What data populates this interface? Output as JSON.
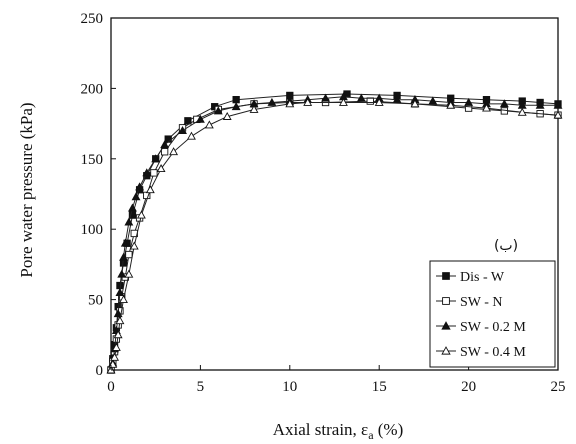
{
  "chart_data": {
    "type": "line",
    "xlabel": "Axial strain, εa (%)",
    "xlabel_main": "Axial strain, ε",
    "xlabel_sub": "a",
    "xlabel_tail": " (%)",
    "ylabel": "Pore water pressure (kPa)",
    "xlim": [
      0,
      25
    ],
    "ylim": [
      0,
      250
    ],
    "xticks": [
      "0",
      "5",
      "10",
      "15",
      "20",
      "25"
    ],
    "yticks": [
      "0",
      "50",
      "100",
      "150",
      "200",
      "250"
    ],
    "grid": false,
    "legend_position": "bottom-right",
    "annotation": "(ب)",
    "series": [
      {
        "name": "Dis - W",
        "marker": "filled-square",
        "x": [
          0,
          0.1,
          0.2,
          0.3,
          0.4,
          0.5,
          0.7,
          0.9,
          1.2,
          1.6,
          2,
          2.5,
          3.2,
          4.3,
          5.8,
          7,
          10,
          13.2,
          16,
          19,
          21,
          23,
          24,
          25
        ],
        "y": [
          0,
          8,
          18,
          30,
          45,
          60,
          76,
          90,
          110,
          128,
          138,
          150,
          164,
          177,
          187,
          192,
          195,
          196,
          195,
          193,
          192,
          191,
          190,
          189
        ]
      },
      {
        "name": "SW - N",
        "marker": "open-square",
        "x": [
          0,
          0.1,
          0.2,
          0.3,
          0.4,
          0.5,
          0.6,
          0.8,
          1,
          1.3,
          1.6,
          2,
          2.4,
          3,
          4,
          4.8,
          6,
          8,
          10,
          12,
          14.5,
          17,
          20,
          22,
          24,
          25
        ],
        "y": [
          0,
          6,
          13,
          22,
          32,
          42,
          52,
          66,
          82,
          97,
          108,
          124,
          140,
          155,
          172,
          178,
          185,
          189,
          190,
          190,
          191,
          189,
          186,
          184,
          182,
          181
        ]
      },
      {
        "name": "SW - 0.2 M",
        "marker": "filled-triangle",
        "x": [
          0,
          0.1,
          0.2,
          0.3,
          0.4,
          0.5,
          0.6,
          0.7,
          0.8,
          1,
          1.2,
          1.4,
          1.6,
          2,
          2.5,
          3,
          4,
          5,
          6,
          7,
          8,
          9,
          10,
          11,
          12,
          13,
          14,
          15,
          16,
          17,
          18,
          19,
          20,
          21,
          22,
          23,
          24,
          25
        ],
        "y": [
          0,
          5,
          15,
          28,
          40,
          55,
          68,
          80,
          90,
          105,
          115,
          123,
          130,
          140,
          150,
          160,
          170,
          178,
          184,
          187,
          189,
          190,
          191,
          192,
          193,
          194,
          193,
          193,
          192,
          192,
          191,
          190,
          190,
          189,
          189,
          188,
          188,
          188
        ]
      },
      {
        "name": "SW - 0.4 M",
        "marker": "open-triangle",
        "x": [
          0,
          0.1,
          0.2,
          0.3,
          0.4,
          0.5,
          0.7,
          1,
          1.3,
          1.7,
          2.2,
          2.8,
          3.5,
          4.5,
          5.5,
          6.5,
          8,
          10,
          11,
          13,
          15,
          17,
          19,
          21,
          23,
          25
        ],
        "y": [
          0,
          4,
          9,
          16,
          25,
          35,
          50,
          68,
          88,
          110,
          128,
          143,
          155,
          166,
          174,
          180,
          185,
          189,
          190,
          190,
          190,
          189,
          188,
          186,
          183,
          181
        ]
      }
    ]
  }
}
